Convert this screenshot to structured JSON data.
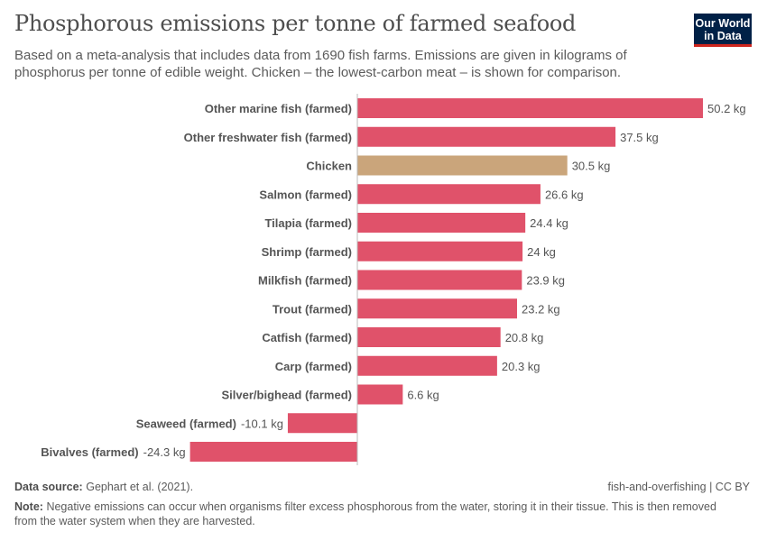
{
  "title": "Phosphorous emissions per tonne of farmed seafood",
  "subtitle": "Based on a meta-analysis that includes data from 1690 fish farms. Emissions are given in kilograms of phosphorus per tonne of edible weight. Chicken – the lowest-carbon meat – is shown for comparison.",
  "logo": {
    "line1": "Our World",
    "line2": "in Data"
  },
  "colors": {
    "bar": "#e0526a",
    "highlight": "#caa57b",
    "axis": "#bbbbbb"
  },
  "chart_data": {
    "type": "bar",
    "orientation": "horizontal",
    "unit": "kg",
    "categories": [
      "Other marine fish (farmed)",
      "Other freshwater fish (farmed)",
      "Chicken",
      "Salmon (farmed)",
      "Tilapia (farmed)",
      "Shrimp (farmed)",
      "Milkfish (farmed)",
      "Trout (farmed)",
      "Catfish (farmed)",
      "Carp (farmed)",
      "Silver/bighead (farmed)",
      "Seaweed (farmed)",
      "Bivalves (farmed)"
    ],
    "values": [
      50.2,
      37.5,
      30.5,
      26.6,
      24.4,
      24,
      23.9,
      23.2,
      20.8,
      20.3,
      6.6,
      -10.1,
      -24.3
    ],
    "value_labels": [
      "50.2 kg",
      "37.5 kg",
      "30.5 kg",
      "26.6 kg",
      "24.4 kg",
      "24 kg",
      "23.9 kg",
      "23.2 kg",
      "20.8 kg",
      "20.3 kg",
      "6.6 kg",
      "-10.1 kg",
      "-24.3 kg"
    ],
    "highlighted": [
      "Chicken"
    ],
    "grid": false
  },
  "footer": {
    "source_label": "Data source:",
    "source": "Gephart et al. (2021).",
    "right": "fish-and-overfishing | CC BY",
    "note_label": "Note:",
    "note": "Negative emissions can occur when organisms filter excess phosphorous from the water, storing it in their tissue. This is then removed from the water system when they are harvested."
  }
}
